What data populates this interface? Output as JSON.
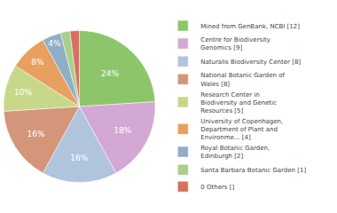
{
  "chart_data": {
    "type": "pie",
    "categories": [
      "Mined from GenBank, NCBI [12]",
      "Centre for Biodiversity\nGenomics [9]",
      "Naturalis Biodiversity Center [8]",
      "National Botanic Garden of\nWales [8]",
      "Research Center in\nBiodiversity and Genetic\nResources [5]",
      "University of Copenhagen,\nDepartment of Plant and\nEnvironme... [4]",
      "Royal Botanic Garden,\nEdinburgh [2]",
      "Santa Barbara Botanic Garden [1]",
      "0 Others []"
    ],
    "values": [
      24,
      18,
      16,
      16,
      10,
      8,
      4,
      2,
      2
    ],
    "value_labels": [
      "24%",
      "18%",
      "16%",
      "16%",
      "10%",
      "8%",
      "4%",
      null,
      null
    ],
    "colors": [
      "#8dc66a",
      "#d4a8d4",
      "#b0c4de",
      "#d4967a",
      "#c8d88a",
      "#e8a060",
      "#90aec8",
      "#a8d088",
      "#d87060"
    ],
    "data_labels": true,
    "legend": "right"
  }
}
